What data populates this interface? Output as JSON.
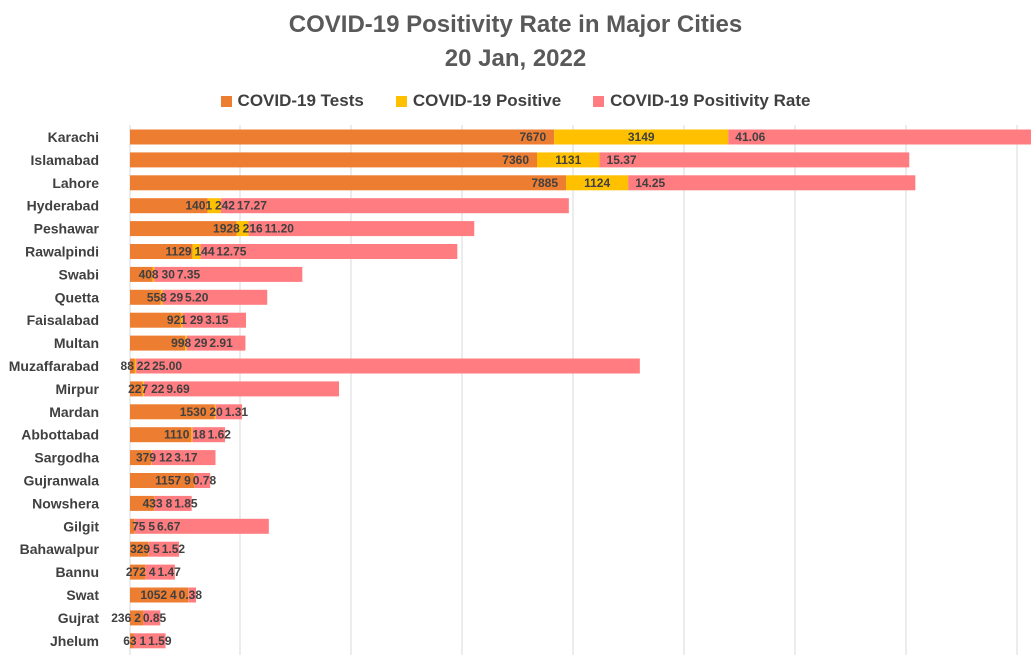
{
  "chart_data": {
    "type": "bar",
    "orientation": "horizontal",
    "stacked": true,
    "title": "COVID-19 Positivity Rate in Major Cities",
    "subtitle": "20 Jan, 2022",
    "legend_position": "top",
    "grid": true,
    "categories": [
      "Karachi",
      "Islamabad",
      "Lahore",
      "Hyderabad",
      "Peshawar",
      "Rawalpindi",
      "Swabi",
      "Quetta",
      "Faisalabad",
      "Multan",
      "Muzaffarabad",
      "Mirpur",
      "Mardan",
      "Abbottabad",
      "Sargodha",
      "Gujranwala",
      "Nowshera",
      "Gilgit",
      "Bahawalpur",
      "Bannu",
      "Swat",
      "Gujrat",
      "Jhelum"
    ],
    "series": [
      {
        "name": "COVID-19 Tests",
        "color": "#ED7D31",
        "values": [
          7670,
          7360,
          7885,
          1401,
          1928,
          1129,
          408,
          558,
          921,
          998,
          88,
          227,
          1530,
          1110,
          379,
          1157,
          433,
          75,
          329,
          272,
          1052,
          236,
          63
        ],
        "labels": [
          "7670",
          "7360",
          "7885",
          "1401",
          "1928",
          "1129",
          "408",
          "558",
          "921",
          "998",
          "88",
          "227",
          "1530",
          "1110",
          "379",
          "1157",
          "433",
          "75",
          "329",
          "272",
          "1052",
          "236",
          "63"
        ]
      },
      {
        "name": "COVID-19 Positive",
        "color": "#FFC000",
        "values": [
          3149,
          1131,
          1124,
          242,
          216,
          144,
          30,
          29,
          29,
          29,
          22,
          22,
          20,
          18,
          12,
          9,
          8,
          5,
          5,
          4,
          4,
          2,
          1
        ],
        "labels": [
          "3149",
          "1131",
          "1124",
          "242",
          "216",
          "144",
          "30",
          "29",
          "29",
          "29",
          "22",
          "22",
          "20",
          "18",
          "12",
          "9",
          "8",
          "5",
          "5",
          "4",
          "4",
          "2",
          "1"
        ]
      },
      {
        "name": "COVID-19 Positivity Rate",
        "color": "#FF7C80",
        "values": [
          41.06,
          15.37,
          14.25,
          17.27,
          11.2,
          12.75,
          7.35,
          5.2,
          3.15,
          2.91,
          25.0,
          9.69,
          1.31,
          1.62,
          3.17,
          0.78,
          1.85,
          6.67,
          1.52,
          1.47,
          0.38,
          0.85,
          1.59
        ],
        "labels": [
          "41.06",
          "15.37",
          "14.25",
          "17.27",
          "11.20",
          "12.75",
          "7.35",
          "5.20",
          "3.15",
          "2.91",
          "25.00",
          "9.69",
          "1.31",
          "1.62",
          "3.17",
          "0.78",
          "1.85",
          "6.67",
          "1.52",
          "1.47",
          "0.38",
          "0.85",
          "1.59"
        ]
      }
    ]
  }
}
